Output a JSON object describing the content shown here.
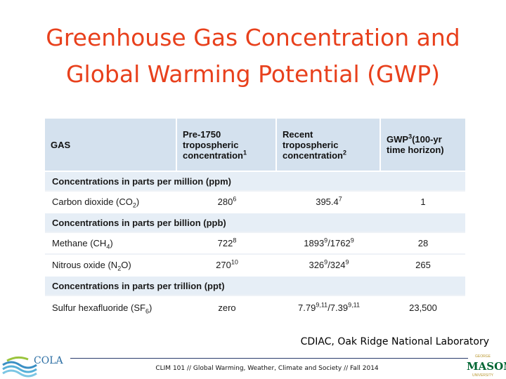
{
  "slide": {
    "title_line1": "Greenhouse Gas Concentration and",
    "title_line2": "Global Warming Potential (GWP)",
    "source": "CDIAC, Oak Ridge National Laboratory",
    "footer": "CLIM 101 // Global Warming, Weather, Climate and Society // Fall 2014",
    "title_color": "#e8401c"
  },
  "table": {
    "headers": {
      "gas": "GAS",
      "pre1750_a": "Pre-1750",
      "pre1750_b": "tropospheric",
      "pre1750_c": "concentration",
      "pre1750_sup": "1",
      "recent_a": "Recent",
      "recent_b": "tropospheric",
      "recent_c": "concentration",
      "recent_sup": "2",
      "gwp_a": "GWP",
      "gwp_sup": "3",
      "gwp_b": "(100-yr",
      "gwp_c": "time horizon)"
    },
    "sections": {
      "ppm": "Concentrations in parts per million (ppm)",
      "ppb": "Concentrations in parts per billion (ppb)",
      "ppt": "Concentrations in parts per trillion (ppt)"
    },
    "co2": {
      "name_a": "Carbon dioxide (CO",
      "name_sub": "2",
      "name_b": ")",
      "pre": "280",
      "pre_sup": "6",
      "recent": "395.4",
      "recent_sup": "7",
      "gwp": "1"
    },
    "ch4": {
      "name_a": "Methane (CH",
      "name_sub": "4",
      "name_b": ")",
      "pre": "722",
      "pre_sup": "8",
      "recent_a": "1893",
      "recent_a_sup": "9",
      "recent_b": "/1762",
      "recent_b_sup": "9",
      "gwp": "28"
    },
    "n2o": {
      "name_a": "Nitrous oxide (N",
      "name_sub": "2",
      "name_b": "O)",
      "pre": "270",
      "pre_sup": "10",
      "recent_a": "326",
      "recent_a_sup": "9",
      "recent_b": "/324",
      "recent_b_sup": "9",
      "gwp": "265"
    },
    "sf6": {
      "name_a": "Sulfur hexafluoride (SF",
      "name_sub": "6",
      "name_b": ")",
      "pre": "zero",
      "recent_a": "7.79",
      "recent_a_sup": "9,11",
      "recent_b": "/7.39",
      "recent_b_sup": "9,11",
      "gwp": "23,500"
    }
  },
  "logos": {
    "cola_text": "COLA",
    "mason_text": "MASON",
    "mason_top": "GEORGE",
    "mason_bottom": "UNIVERSITY"
  }
}
